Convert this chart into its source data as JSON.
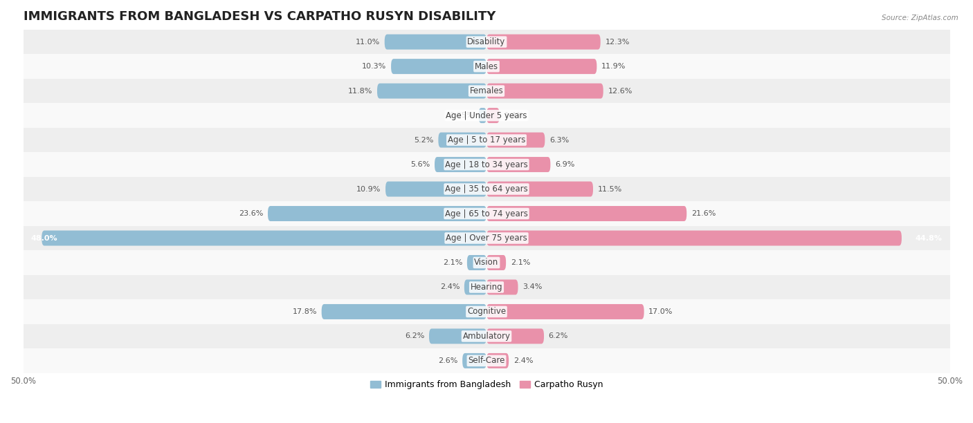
{
  "title": "IMMIGRANTS FROM BANGLADESH VS CARPATHO RUSYN DISABILITY",
  "source": "Source: ZipAtlas.com",
  "categories": [
    "Disability",
    "Males",
    "Females",
    "Age | Under 5 years",
    "Age | 5 to 17 years",
    "Age | 18 to 34 years",
    "Age | 35 to 64 years",
    "Age | 65 to 74 years",
    "Age | Over 75 years",
    "Vision",
    "Hearing",
    "Cognitive",
    "Ambulatory",
    "Self-Care"
  ],
  "left_values": [
    11.0,
    10.3,
    11.8,
    0.85,
    5.2,
    5.6,
    10.9,
    23.6,
    48.0,
    2.1,
    2.4,
    17.8,
    6.2,
    2.6
  ],
  "right_values": [
    12.3,
    11.9,
    12.6,
    1.4,
    6.3,
    6.9,
    11.5,
    21.6,
    44.8,
    2.1,
    3.4,
    17.0,
    6.2,
    2.4
  ],
  "left_color": "#92bdd4",
  "right_color": "#e991aa",
  "left_label": "Immigrants from Bangladesh",
  "right_label": "Carpatho Rusyn",
  "bar_height": 0.62,
  "xlim": 50.0,
  "bg_row_light": "#eeeeee",
  "bg_row_white": "#f9f9f9",
  "title_fontsize": 13,
  "cat_fontsize": 8.5,
  "value_fontsize": 8,
  "legend_fontsize": 9,
  "figwidth": 14.06,
  "figheight": 6.12,
  "fig_dpi": 100
}
